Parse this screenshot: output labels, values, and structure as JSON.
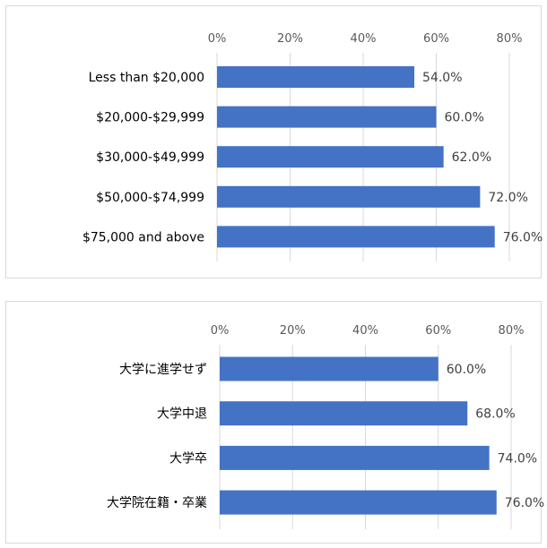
{
  "colors": {
    "bar": "#4472C4",
    "grid": "#D9D9D9",
    "border": "#D9D9D9"
  },
  "chart_data": [
    {
      "type": "bar",
      "orientation": "horizontal",
      "categories": [
        "Less than $20,000",
        "$20,000-$29,999",
        "$30,000-$49,999",
        "$50,000-$74,999",
        "$75,000 and above"
      ],
      "values": [
        54.0,
        60.0,
        62.0,
        72.0,
        76.0
      ],
      "value_labels": [
        "54.0%",
        "60.0%",
        "62.0%",
        "72.0%",
        "76.0%"
      ],
      "xlim": [
        0,
        80
      ],
      "x_ticks": [
        "0%",
        "20%",
        "40%",
        "60%",
        "80%"
      ],
      "x_axis_position": "top",
      "grid": true,
      "title": "",
      "xlabel": "",
      "ylabel": ""
    },
    {
      "type": "bar",
      "orientation": "horizontal",
      "categories": [
        "大学に進学せず",
        "大学中退",
        "大学卒",
        "大学院在籍・卒業"
      ],
      "values": [
        60.0,
        68.0,
        74.0,
        76.0
      ],
      "value_labels": [
        "60.0%",
        "68.0%",
        "74.0%",
        "76.0%"
      ],
      "xlim": [
        0,
        80
      ],
      "x_ticks": [
        "0%",
        "20%",
        "40%",
        "60%",
        "80%"
      ],
      "x_axis_position": "top",
      "grid": true,
      "title": "",
      "xlabel": "",
      "ylabel": ""
    }
  ]
}
